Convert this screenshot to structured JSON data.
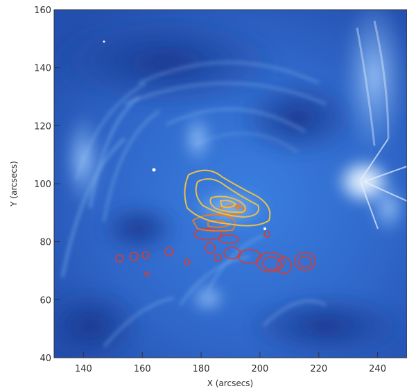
{
  "image": {
    "xlabel": "X (arcsecs)",
    "ylabel": "Y (arcsecs)",
    "x_ticks": [
      "140",
      "160",
      "180",
      "200",
      "220",
      "240"
    ],
    "y_ticks": [
      "40",
      "60",
      "80",
      "100",
      "120",
      "140",
      "160"
    ],
    "x_range": [
      130,
      250
    ],
    "y_range": [
      40,
      160
    ],
    "colors": {
      "background_blue": "#2f6fd0",
      "dark_blue": "#1c3f9a",
      "bright_loop": "#cfe6ff",
      "yellow_contour": "#e8c04a",
      "orange_contour": "#ee7a1e",
      "red_contour": "#e23a28"
    }
  }
}
